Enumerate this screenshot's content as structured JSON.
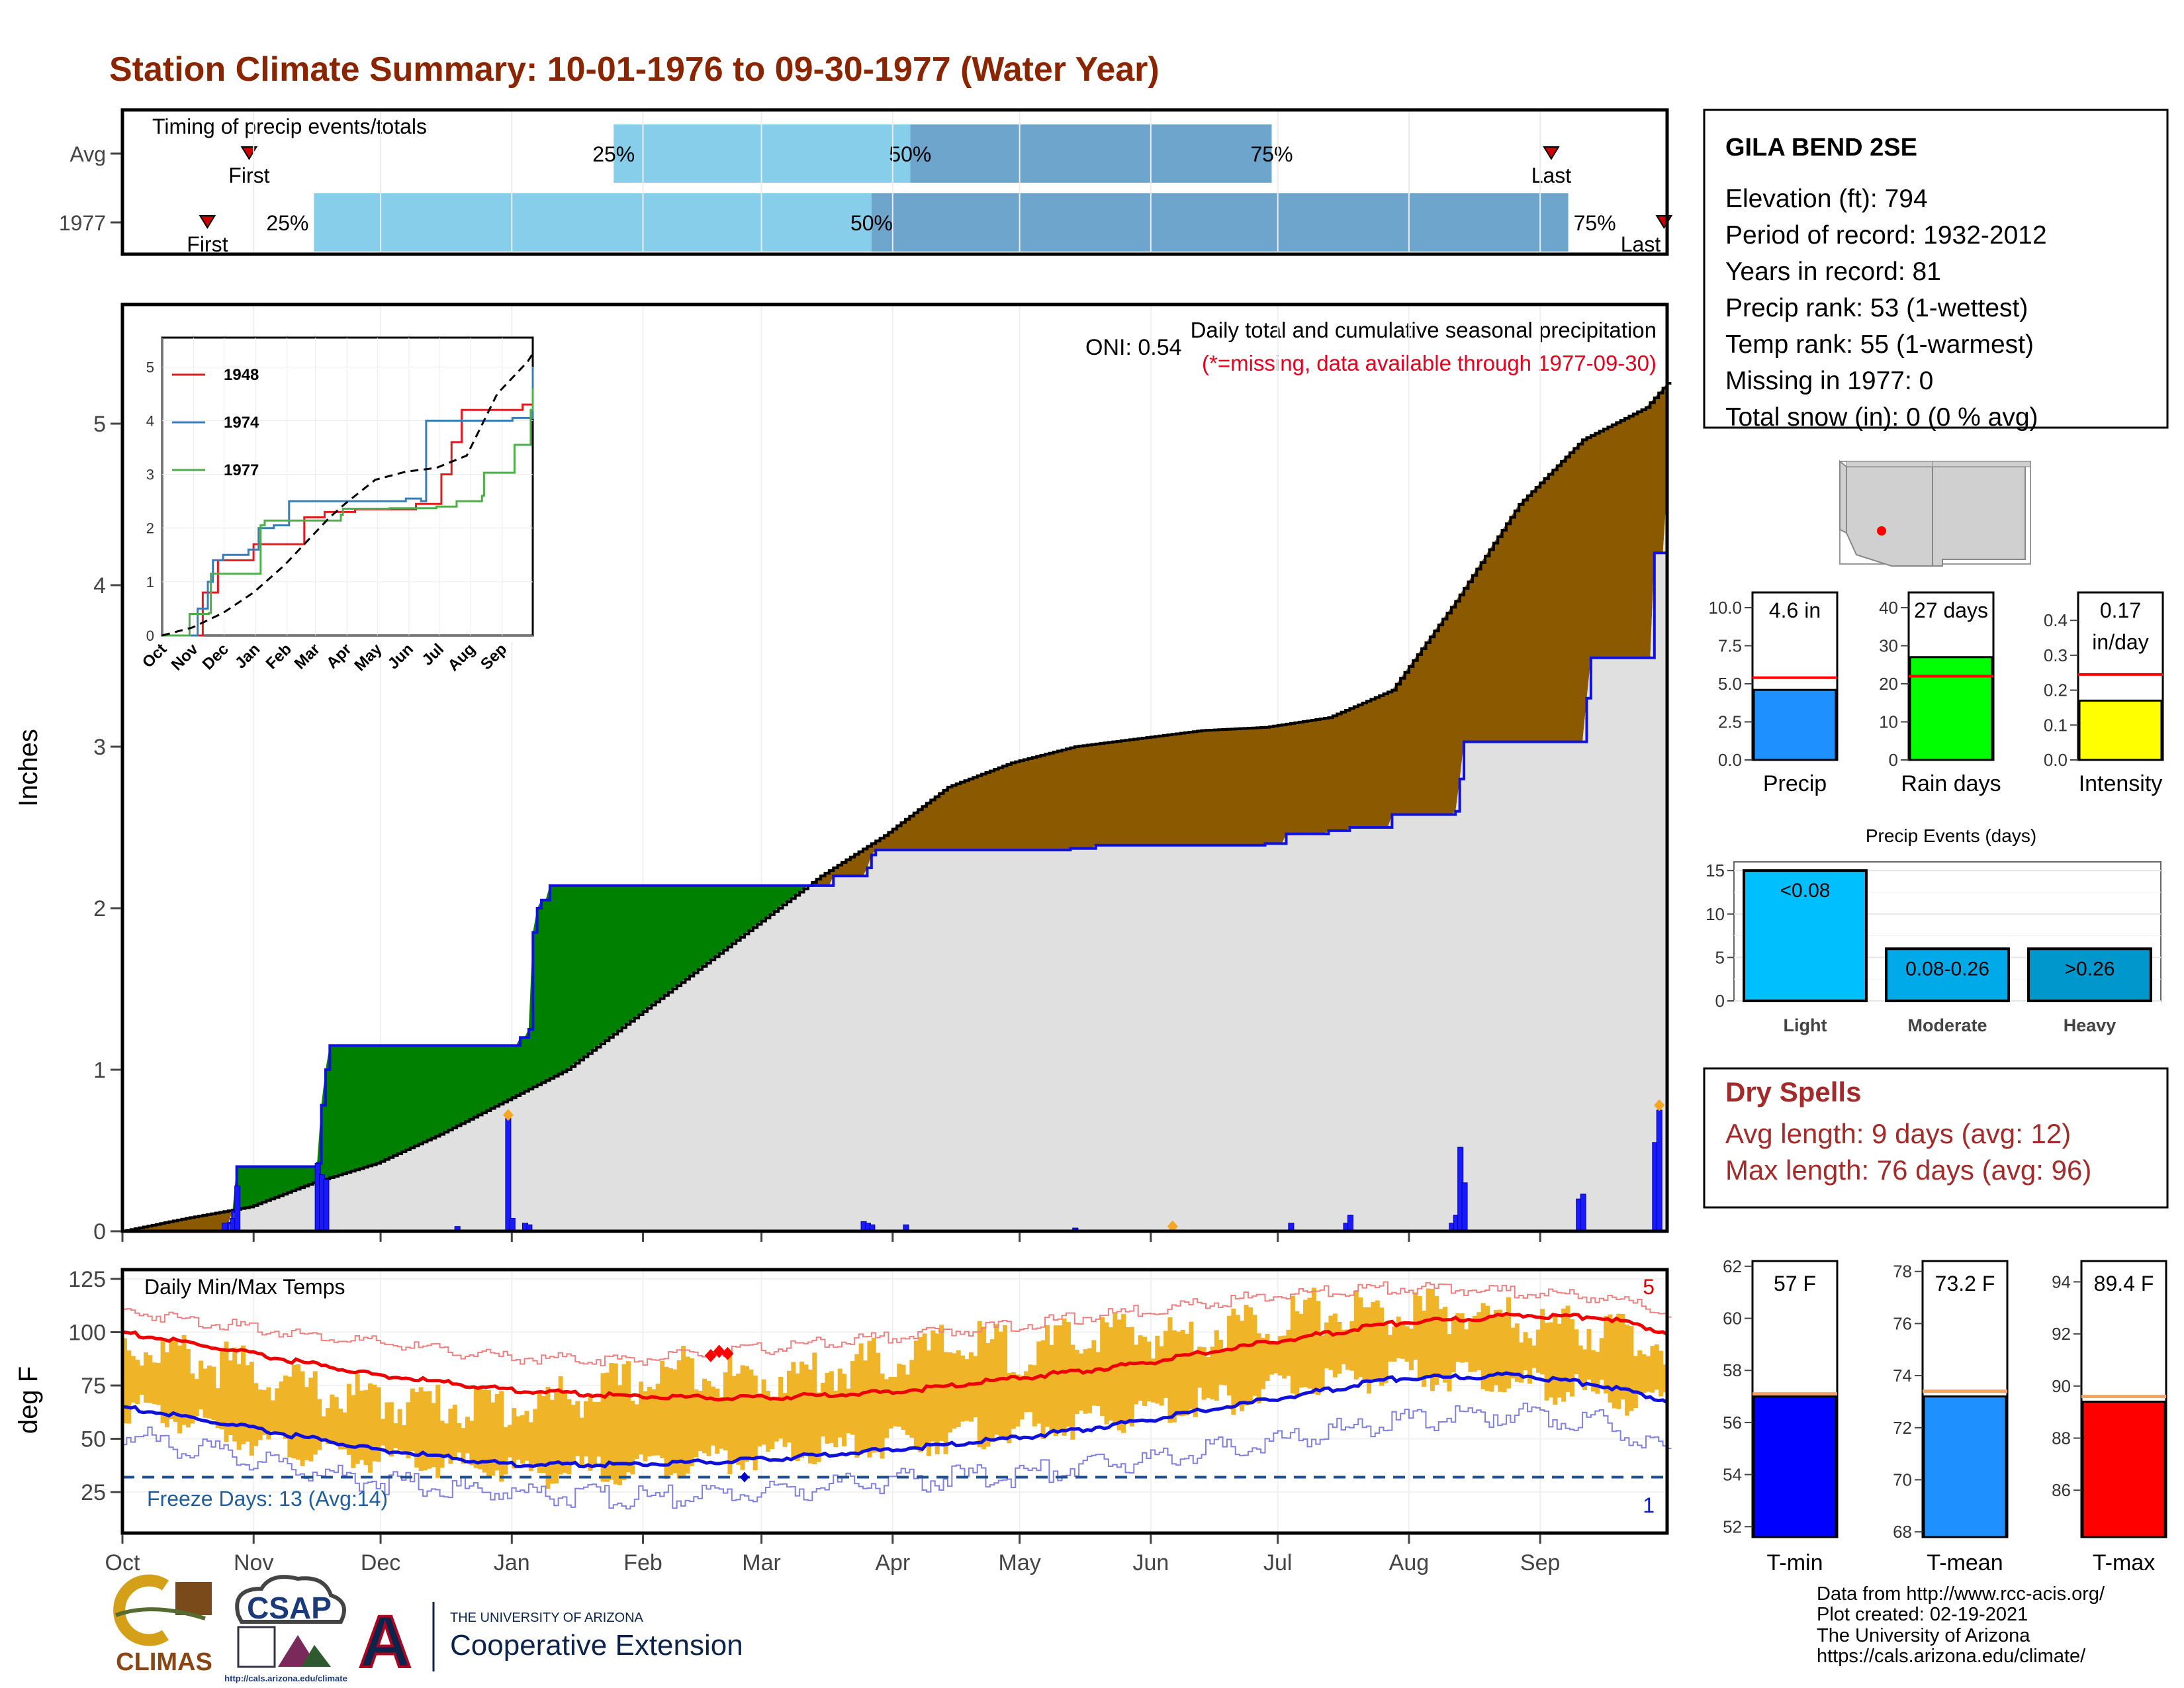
{
  "title": "Station Climate Summary: 10-01-1976 to 09-30-1977 (Water Year)",
  "timing": {
    "label": "Timing of precip events/totals",
    "rows": [
      "Avg",
      "1977"
    ],
    "first_label": "First",
    "last_label": "Last",
    "pct_labels": [
      "25%",
      "50%",
      "75%"
    ],
    "avg": {
      "first": 0.082,
      "p25": 0.318,
      "p50": 0.51,
      "p75": 0.744,
      "last": 0.925
    },
    "year": {
      "first": 0.055,
      "p25": 0.124,
      "p50": 0.485,
      "p75": 0.936,
      "last": 0.998
    }
  },
  "months": [
    "Oct",
    "Nov",
    "Dec",
    "Jan",
    "Feb",
    "Mar",
    "Apr",
    "May",
    "Jun",
    "Jul",
    "Aug",
    "Sep"
  ],
  "precip": {
    "ylabel": "Inches",
    "yticks": [
      0,
      1,
      2,
      3,
      4,
      5
    ],
    "oni": "ONI: 0.54",
    "caption": "Daily total and cumulative seasonal precipitation",
    "missing_note": "(*=missing, data available through 1977-09-30)",
    "corner_count": "3",
    "avg_cum": [
      [
        0,
        0
      ],
      [
        15,
        0.08
      ],
      [
        30,
        0.15
      ],
      [
        45,
        0.3
      ],
      [
        60,
        0.42
      ],
      [
        75,
        0.6
      ],
      [
        90,
        0.8
      ],
      [
        105,
        1.0
      ],
      [
        120,
        1.3
      ],
      [
        135,
        1.6
      ],
      [
        150,
        1.9
      ],
      [
        165,
        2.2
      ],
      [
        180,
        2.45
      ],
      [
        195,
        2.75
      ],
      [
        210,
        2.9
      ],
      [
        225,
        3.0
      ],
      [
        240,
        3.05
      ],
      [
        255,
        3.1
      ],
      [
        270,
        3.12
      ],
      [
        285,
        3.18
      ],
      [
        300,
        3.35
      ],
      [
        315,
        3.9
      ],
      [
        330,
        4.5
      ],
      [
        345,
        4.9
      ],
      [
        360,
        5.1
      ],
      [
        365,
        5.25
      ]
    ],
    "year_cum": [
      [
        0,
        0
      ],
      [
        24,
        0
      ],
      [
        25,
        0.05
      ],
      [
        26,
        0.12
      ],
      [
        27,
        0.4
      ],
      [
        46,
        0.42
      ],
      [
        47,
        0.78
      ],
      [
        48,
        1.0
      ],
      [
        49,
        1.15
      ],
      [
        93,
        1.15
      ],
      [
        94,
        1.2
      ],
      [
        96,
        1.25
      ],
      [
        97,
        1.85
      ],
      [
        98,
        2.0
      ],
      [
        99,
        2.05
      ],
      [
        101,
        2.14
      ],
      [
        134,
        2.14
      ],
      [
        168,
        2.2
      ],
      [
        176,
        2.25
      ],
      [
        177,
        2.33
      ],
      [
        178,
        2.36
      ],
      [
        224,
        2.37
      ],
      [
        230,
        2.39
      ],
      [
        270,
        2.4
      ],
      [
        275,
        2.46
      ],
      [
        285,
        2.48
      ],
      [
        290,
        2.5
      ],
      [
        300,
        2.58
      ],
      [
        315,
        2.6
      ],
      [
        316,
        2.8
      ],
      [
        317,
        3.03
      ],
      [
        345,
        3.03
      ],
      [
        346,
        3.3
      ],
      [
        347,
        3.55
      ],
      [
        361,
        3.55
      ],
      [
        362,
        4.2
      ],
      [
        365,
        4.6
      ]
    ],
    "daily": [
      [
        24,
        0.05
      ],
      [
        26,
        0.08
      ],
      [
        27,
        0.28
      ],
      [
        46,
        0.42
      ],
      [
        47,
        0.35
      ],
      [
        48,
        0.32
      ],
      [
        79,
        0.03
      ],
      [
        91,
        0.7
      ],
      [
        92,
        0.08
      ],
      [
        95,
        0.05
      ],
      [
        96,
        0.04
      ],
      [
        175,
        0.06
      ],
      [
        176,
        0.05
      ],
      [
        177,
        0.04
      ],
      [
        185,
        0.04
      ],
      [
        225,
        0.02
      ],
      [
        276,
        0.05
      ],
      [
        289,
        0.05
      ],
      [
        290,
        0.1
      ],
      [
        314,
        0.05
      ],
      [
        315,
        0.1
      ],
      [
        316,
        0.52
      ],
      [
        317,
        0.3
      ],
      [
        344,
        0.2
      ],
      [
        345,
        0.23
      ],
      [
        362,
        0.55
      ],
      [
        363,
        0.75
      ]
    ],
    "markers": [
      [
        91,
        0.72
      ],
      [
        248,
        0.03
      ],
      [
        363,
        0.78
      ]
    ]
  },
  "inset": {
    "yticks": [
      0,
      1,
      2,
      3,
      4,
      5
    ],
    "series": [
      {
        "name": "1948",
        "color": "#e41a1c",
        "values": [
          [
            0,
            0
          ],
          [
            35,
            0
          ],
          [
            40,
            0.8
          ],
          [
            55,
            1.4
          ],
          [
            75,
            1.4
          ],
          [
            90,
            1.7
          ],
          [
            120,
            1.7
          ],
          [
            140,
            2.2
          ],
          [
            160,
            2.3
          ],
          [
            190,
            2.35
          ],
          [
            250,
            2.45
          ],
          [
            275,
            3.0
          ],
          [
            285,
            3.6
          ],
          [
            295,
            4.2
          ],
          [
            330,
            4.2
          ],
          [
            355,
            4.3
          ],
          [
            365,
            4.6
          ]
        ]
      },
      {
        "name": "1974",
        "color": "#377eb8",
        "values": [
          [
            0,
            0
          ],
          [
            25,
            0
          ],
          [
            35,
            0.5
          ],
          [
            45,
            1.0
          ],
          [
            50,
            1.4
          ],
          [
            60,
            1.5
          ],
          [
            85,
            1.6
          ],
          [
            95,
            2.0
          ],
          [
            110,
            2.05
          ],
          [
            125,
            2.5
          ],
          [
            190,
            2.5
          ],
          [
            240,
            2.55
          ],
          [
            255,
            2.5
          ],
          [
            260,
            4.0
          ],
          [
            330,
            4.0
          ],
          [
            345,
            4.05
          ],
          [
            365,
            5.0
          ]
        ]
      },
      {
        "name": "1977",
        "color": "#4daf4a",
        "values": [
          [
            0,
            0
          ],
          [
            25,
            0
          ],
          [
            27,
            0.4
          ],
          [
            46,
            0.42
          ],
          [
            48,
            1.15
          ],
          [
            93,
            1.15
          ],
          [
            97,
            2.05
          ],
          [
            101,
            2.14
          ],
          [
            176,
            2.25
          ],
          [
            178,
            2.36
          ],
          [
            224,
            2.37
          ],
          [
            270,
            2.4
          ],
          [
            290,
            2.5
          ],
          [
            315,
            2.6
          ],
          [
            317,
            3.03
          ],
          [
            345,
            3.03
          ],
          [
            347,
            3.55
          ],
          [
            361,
            3.55
          ],
          [
            363,
            4.2
          ],
          [
            365,
            4.6
          ]
        ]
      }
    ],
    "avg_values": [
      [
        0,
        0
      ],
      [
        30,
        0.15
      ],
      [
        60,
        0.42
      ],
      [
        90,
        0.8
      ],
      [
        120,
        1.3
      ],
      [
        150,
        1.9
      ],
      [
        165,
        2.2
      ],
      [
        180,
        2.45
      ],
      [
        210,
        2.9
      ],
      [
        240,
        3.05
      ],
      [
        270,
        3.12
      ],
      [
        300,
        3.35
      ],
      [
        330,
        4.5
      ],
      [
        360,
        5.1
      ],
      [
        365,
        5.25
      ]
    ]
  },
  "temps": {
    "label": "Daily Min/Max Temps",
    "ylabel": "deg F",
    "yticks": [
      25,
      50,
      75,
      100,
      125
    ],
    "freeze_text": "Freeze Days: 13 (Avg:14)",
    "freeze_line": 32,
    "count_top": "5",
    "count_bottom": "1",
    "avg_max": [
      [
        0,
        100
      ],
      [
        30,
        90
      ],
      [
        60,
        80
      ],
      [
        91,
        73
      ],
      [
        120,
        70
      ],
      [
        150,
        69
      ],
      [
        182,
        72
      ],
      [
        210,
        78
      ],
      [
        240,
        85
      ],
      [
        270,
        95
      ],
      [
        300,
        104
      ],
      [
        330,
        108
      ],
      [
        350,
        107
      ],
      [
        365,
        100
      ]
    ],
    "avg_min": [
      [
        0,
        65
      ],
      [
        30,
        55
      ],
      [
        60,
        45
      ],
      [
        91,
        38
      ],
      [
        120,
        38
      ],
      [
        150,
        40
      ],
      [
        182,
        45
      ],
      [
        210,
        50
      ],
      [
        240,
        58
      ],
      [
        270,
        68
      ],
      [
        300,
        78
      ],
      [
        330,
        80
      ],
      [
        350,
        75
      ],
      [
        365,
        68
      ]
    ],
    "rec_max": [
      [
        0,
        110
      ],
      [
        30,
        102
      ],
      [
        60,
        95
      ],
      [
        91,
        88
      ],
      [
        120,
        87
      ],
      [
        150,
        92
      ],
      [
        182,
        98
      ],
      [
        210,
        103
      ],
      [
        240,
        110
      ],
      [
        270,
        117
      ],
      [
        300,
        121
      ],
      [
        330,
        119
      ],
      [
        350,
        116
      ],
      [
        365,
        110
      ]
    ],
    "rec_min": [
      [
        0,
        52
      ],
      [
        30,
        40
      ],
      [
        60,
        30
      ],
      [
        91,
        25
      ],
      [
        120,
        22
      ],
      [
        150,
        25
      ],
      [
        182,
        30
      ],
      [
        210,
        33
      ],
      [
        240,
        40
      ],
      [
        270,
        48
      ],
      [
        300,
        58
      ],
      [
        330,
        62
      ],
      [
        350,
        58
      ],
      [
        365,
        45
      ]
    ],
    "max_anchors": [
      [
        0,
        95
      ],
      [
        15,
        88
      ],
      [
        30,
        82
      ],
      [
        45,
        72
      ],
      [
        60,
        68
      ],
      [
        80,
        66
      ],
      [
        95,
        65
      ],
      [
        110,
        72
      ],
      [
        125,
        78
      ],
      [
        135,
        85
      ],
      [
        145,
        78
      ],
      [
        160,
        80
      ],
      [
        182,
        88
      ],
      [
        200,
        95
      ],
      [
        215,
        90
      ],
      [
        230,
        100
      ],
      [
        250,
        98
      ],
      [
        270,
        106
      ],
      [
        285,
        110
      ],
      [
        300,
        108
      ],
      [
        315,
        110
      ],
      [
        330,
        104
      ],
      [
        345,
        102
      ],
      [
        365,
        96
      ]
    ],
    "min_anchors": [
      [
        0,
        65
      ],
      [
        15,
        58
      ],
      [
        30,
        50
      ],
      [
        45,
        43
      ],
      [
        60,
        40
      ],
      [
        75,
        37
      ],
      [
        91,
        35
      ],
      [
        105,
        34
      ],
      [
        120,
        36
      ],
      [
        135,
        40
      ],
      [
        150,
        42
      ],
      [
        165,
        44
      ],
      [
        182,
        48
      ],
      [
        200,
        52
      ],
      [
        215,
        55
      ],
      [
        230,
        58
      ],
      [
        250,
        65
      ],
      [
        270,
        72
      ],
      [
        285,
        78
      ],
      [
        300,
        80
      ],
      [
        315,
        79
      ],
      [
        330,
        76
      ],
      [
        345,
        72
      ],
      [
        365,
        65
      ]
    ],
    "record_markers": [
      [
        139,
        89
      ],
      [
        141,
        91
      ],
      [
        143,
        90
      ]
    ],
    "low_marker": [
      147,
      32
    ]
  },
  "station": {
    "name": "GILA BEND 2SE",
    "lines": [
      "Elevation (ft): 794",
      "Period of record: 1932-2012",
      "Years in record: 81",
      "Precip rank: 53 (1-wettest)",
      "Temp rank: 55 (1-warmest)",
      "Missing in 1977: 0",
      "Total snow (in): 0 (0 % avg)"
    ]
  },
  "small_charts": {
    "precip": {
      "label": "Precip",
      "value_text": "4.6 in",
      "value": 4.6,
      "avg": 5.4,
      "ymax": 11,
      "yticks": [
        0.0,
        2.5,
        5.0,
        7.5,
        10.0
      ],
      "color": "#1e90ff"
    },
    "raindays": {
      "label": "Rain days",
      "value_text": "27 days",
      "value": 27,
      "avg": 22,
      "ymax": 44,
      "yticks": [
        0,
        10,
        20,
        30,
        40
      ],
      "color": "#00ff00"
    },
    "intensity": {
      "label": "Intensity",
      "value_text": "0.17",
      "value_text2": "in/day",
      "value": 0.17,
      "avg": 0.245,
      "ymax": 0.48,
      "yticks": [
        0.0,
        0.1,
        0.2,
        0.3,
        0.4
      ],
      "color": "#ffff00"
    }
  },
  "events": {
    "title": "Precip Events (days)",
    "categories": [
      "Light",
      "Moderate",
      "Heavy"
    ],
    "bar_labels": [
      "<0.08",
      "0.08-0.26",
      ">0.26"
    ],
    "values": [
      15,
      6,
      6
    ],
    "ymax": 16,
    "yticks": [
      0,
      5,
      10,
      15
    ],
    "colors": [
      "#00bfff",
      "#00a9e8",
      "#0097cc"
    ]
  },
  "dry_spells": {
    "title": "Dry Spells",
    "avg": "Avg length: 9 days (avg: 12)",
    "max": "Max length: 76 days (avg: 96)"
  },
  "temp_bars": [
    {
      "label": "T-min",
      "value_text": "57 F",
      "value": 57,
      "avg": 57.1,
      "ymin": 51.6,
      "ymax": 62.2,
      "yticks": [
        52,
        54,
        56,
        58,
        60,
        62
      ],
      "color": "#0000ff"
    },
    {
      "label": "T-mean",
      "value_text": "73.2 F",
      "value": 73.2,
      "avg": 73.4,
      "ymin": 67.8,
      "ymax": 78.4,
      "yticks": [
        68,
        70,
        72,
        74,
        76,
        78
      ],
      "color": "#1e90ff"
    },
    {
      "label": "T-max",
      "value_text": "89.4 F",
      "value": 89.4,
      "avg": 89.6,
      "ymin": 84.2,
      "ymax": 94.8,
      "yticks": [
        86,
        88,
        90,
        92,
        94
      ],
      "color": "#ff0000"
    }
  ],
  "credits": [
    "Data from http://www.rcc-acis.org/",
    "Plot created: 02-19-2021",
    "The University of Arizona",
    "https://cals.arizona.edu/climate/"
  ],
  "logos": {
    "climas": "CLIMAS",
    "csap": "CSAP",
    "csap_url": "http://cals.arizona.edu/climate",
    "ua_small": "THE UNIVERSITY OF ARIZONA",
    "ua_big": "Cooperative Extension",
    "ua_letter": "A"
  }
}
